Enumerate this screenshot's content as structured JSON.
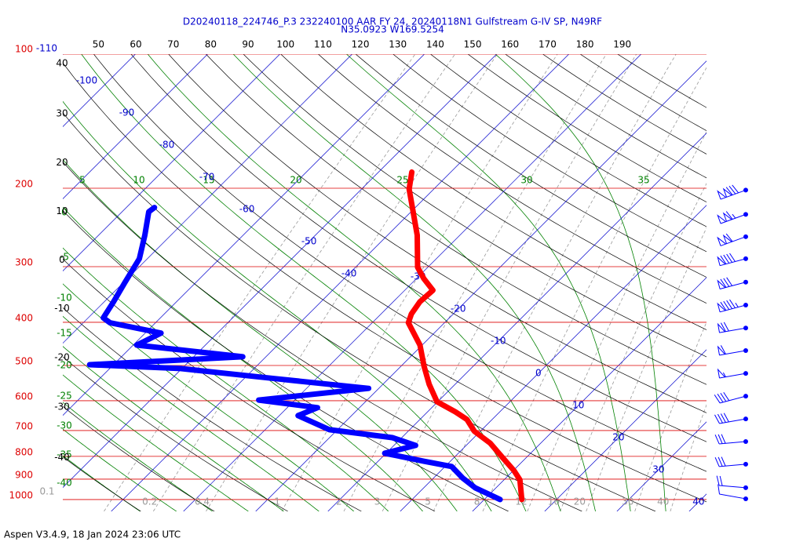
{
  "chart_data": {
    "type": "skewt",
    "title": "D20240118_224746_P.3 232240100 AAR FY 24, 20240118N1 Gulfstream G-IV SP, N49RF",
    "subtitle": "N35.0923 W169.5254",
    "log": true,
    "ylim": [
      100,
      1063
    ],
    "yticks": [
      100,
      200,
      300,
      400,
      500,
      600,
      700,
      800,
      900,
      1000
    ],
    "isobar_color": "#dd0000",
    "xlim": [
      -46.7,
      42.4
    ],
    "isotherms": [
      -110,
      -100,
      -90,
      -80,
      -70,
      -60,
      -50,
      -40,
      -30,
      -20,
      -10,
      0,
      10,
      20,
      30,
      40
    ],
    "isotherm_color": "#0000cc",
    "dry_adiabats": [
      -40,
      -30,
      -20,
      -10,
      0,
      10,
      20,
      30,
      40,
      50,
      60,
      70,
      80,
      90,
      100,
      110,
      120,
      130,
      140,
      150,
      160,
      170,
      180,
      190
    ],
    "dry_adiabat_color": "#000000",
    "moist_adiabats": [
      -40,
      -35,
      -30,
      -25,
      -20,
      -15,
      -10,
      -5,
      0,
      5,
      10,
      15,
      20,
      25,
      30,
      35
    ],
    "moist_adiabat_color": "#008000",
    "mixing_ratios": [
      0.1,
      0.2,
      0.4,
      1,
      2,
      3,
      5,
      8,
      12,
      16,
      20,
      30,
      40
    ],
    "mixing_ratio_color": "#999999",
    "series": [
      {
        "color": "#ff0000",
        "pressure": [
          1000,
          903,
          861,
          803,
          747,
          703,
          661,
          635,
          603,
          551,
          502,
          450,
          401,
          383,
          360,
          339,
          319,
          301,
          255,
          226,
          201,
          184
        ],
        "values": [
          15.2,
          12.2,
          10.1,
          6.6,
          3.0,
          -0.8,
          -3.5,
          -6.2,
          -10.1,
          -13.6,
          -16.8,
          -20.3,
          -25.0,
          -25.8,
          -26.3,
          -26.1,
          -29.0,
          -31.4,
          -35.9,
          -39.7,
          -43.4,
          -45.4
        ]
      },
      {
        "color": "#0000ff",
        "pressure": [
          1000,
          941,
          896,
          843,
          820,
          787,
          756,
          726,
          697,
          648,
          622,
          598,
          563,
          535,
          508,
          498,
          478,
          450,
          423,
          401,
          391,
          360,
          326,
          288,
          255,
          226,
          221
        ],
        "values": [
          12.2,
          7.1,
          4.1,
          0.9,
          -3.7,
          -10.2,
          -7.0,
          -11.3,
          -21.1,
          -27.4,
          -25.8,
          -35.0,
          -21.4,
          -35.8,
          -50.2,
          -63.3,
          -43.2,
          -59.5,
          -57.8,
          -66.3,
          -67.9,
          -68.7,
          -69.8,
          -71.1,
          -73.6,
          -76.3,
          -76.1
        ]
      }
    ],
    "wind": {
      "color": "#0000ff",
      "pressure": [
        202,
        229,
        257,
        288,
        325,
        366,
        412,
        463,
        521,
        586,
        659,
        741,
        833,
        941,
        996
      ],
      "speed": [
        130,
        115,
        110,
        90,
        80,
        95,
        70,
        60,
        55,
        40,
        40,
        30,
        30,
        20,
        10
      ],
      "direction": [
        250,
        250,
        250,
        255,
        255,
        255,
        260,
        260,
        260,
        255,
        260,
        265,
        265,
        275,
        280
      ]
    }
  },
  "footer": "Aspen V3.4.9, 18 Jan 2024  23:06 UTC"
}
